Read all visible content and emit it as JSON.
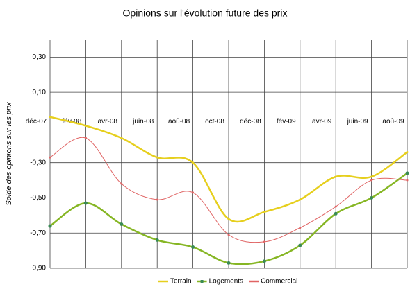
{
  "chart_data": {
    "type": "line",
    "title": "Opinions sur l'évolution future des prix",
    "y_label": "Solde des opinions sur les prix",
    "categories": [
      "déc-07",
      "fév-08",
      "avr-08",
      "juin-08",
      "aoû-08",
      "oct-08",
      "déc-08",
      "fév-09",
      "avr-09",
      "juin-09",
      "aoû-09"
    ],
    "series": [
      {
        "name": "Terrain",
        "color": "#e6cf1e",
        "values": [
          -0.04,
          -0.09,
          -0.16,
          -0.27,
          -0.3,
          -0.62,
          -0.58,
          -0.51,
          -0.38,
          -0.38,
          -0.24
        ]
      },
      {
        "name": "Logements",
        "color": "#86b624",
        "values": [
          -0.66,
          -0.53,
          -0.65,
          -0.74,
          -0.78,
          -0.87,
          -0.86,
          -0.77,
          -0.59,
          -0.5,
          -0.36
        ]
      },
      {
        "name": "Commercial",
        "color": "#e06464",
        "values": [
          -0.27,
          -0.16,
          -0.42,
          -0.51,
          -0.47,
          -0.71,
          -0.75,
          -0.67,
          -0.55,
          -0.4,
          -0.4
        ]
      }
    ],
    "ylim": [
      -0.9,
      0.4
    ],
    "yticks": [
      {
        "value": 0.3,
        "label": "0,30"
      },
      {
        "value": 0.1,
        "label": "0,10"
      },
      {
        "value": -0.3,
        "label": "-0,30"
      },
      {
        "value": -0.5,
        "label": "-0,50"
      },
      {
        "value": -0.7,
        "label": "-0,70"
      },
      {
        "value": -0.9,
        "label": "-0,90"
      }
    ],
    "grid": true,
    "legend": "bottom"
  }
}
